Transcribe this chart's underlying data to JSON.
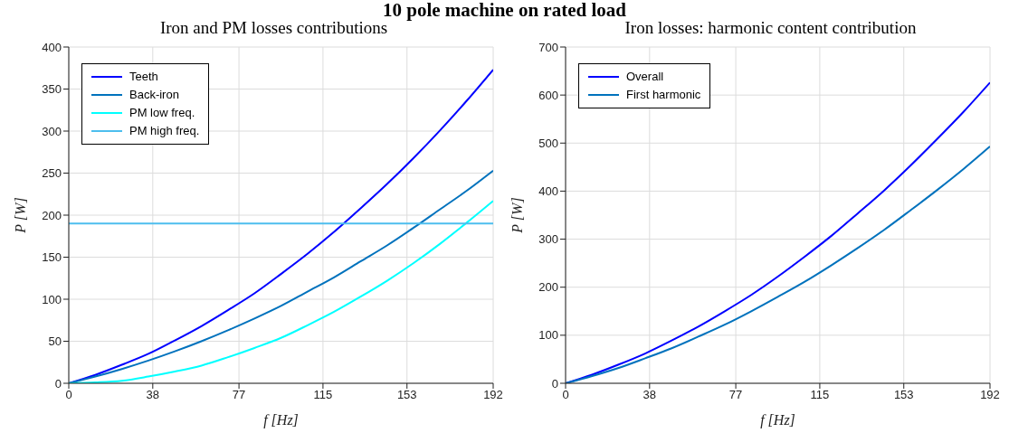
{
  "chart_data": [
    {
      "type": "line",
      "title": "Iron and PM losses contributions",
      "annotations": [
        "10 pole machine on rated load"
      ],
      "xlabel": "f [Hz]",
      "ylabel": "P [W]",
      "x": [
        0,
        12,
        24,
        36,
        48,
        60,
        72,
        84,
        96,
        108,
        120,
        132,
        144,
        156,
        168,
        180,
        192
      ],
      "xlim": [
        0,
        192
      ],
      "xticks": [
        0,
        38,
        77,
        115,
        153,
        192
      ],
      "ylim": [
        0,
        400
      ],
      "yticks": [
        0,
        50,
        100,
        150,
        200,
        250,
        300,
        350,
        400
      ],
      "grid": true,
      "legend": "top left",
      "series": [
        {
          "name": "Teeth",
          "color": "#0000ff",
          "values": [
            0,
            10,
            22,
            35,
            51,
            68,
            87,
            107,
            130,
            154,
            180,
            208,
            237,
            268,
            301,
            336,
            373
          ]
        },
        {
          "name": "Back-iron",
          "color": "#0072bd",
          "values": [
            0,
            8,
            17,
            27,
            38,
            50,
            63,
            77,
            92,
            109,
            126,
            145,
            164,
            185,
            207,
            229,
            253
          ]
        },
        {
          "name": "PM low freq.",
          "color": "#00ffff",
          "values": [
            0,
            1,
            3,
            8,
            14,
            21,
            31,
            42,
            54,
            69,
            85,
            103,
            122,
            143,
            166,
            191,
            217
          ]
        },
        {
          "name": "PM high freq.",
          "color": "#4dbeee",
          "values": [
            190,
            190,
            190,
            190,
            190,
            190,
            190,
            190,
            190,
            190,
            190,
            190,
            190,
            190,
            190,
            190,
            190
          ]
        }
      ]
    },
    {
      "type": "line",
      "title": "Iron losses: harmonic content contribution",
      "xlabel": "f [Hz]",
      "ylabel": "P [W]",
      "x": [
        0,
        12,
        24,
        36,
        48,
        60,
        72,
        84,
        96,
        108,
        120,
        132,
        144,
        156,
        168,
        180,
        192
      ],
      "xlim": [
        0,
        192
      ],
      "xticks": [
        0,
        38,
        77,
        115,
        153,
        192
      ],
      "ylim": [
        0,
        700
      ],
      "yticks": [
        0,
        100,
        200,
        300,
        400,
        500,
        600,
        700
      ],
      "grid": true,
      "legend": "top left",
      "series": [
        {
          "name": "Overall",
          "color": "#0000ff",
          "values": [
            0,
            18,
            39,
            62,
            89,
            118,
            150,
            184,
            222,
            263,
            306,
            353,
            401,
            453,
            508,
            565,
            626
          ]
        },
        {
          "name": "First harmonic",
          "color": "#0072bd",
          "values": [
            0,
            15,
            32,
            52,
            73,
            97,
            122,
            150,
            180,
            211,
            245,
            281,
            319,
            360,
            402,
            446,
            493
          ]
        }
      ]
    }
  ]
}
